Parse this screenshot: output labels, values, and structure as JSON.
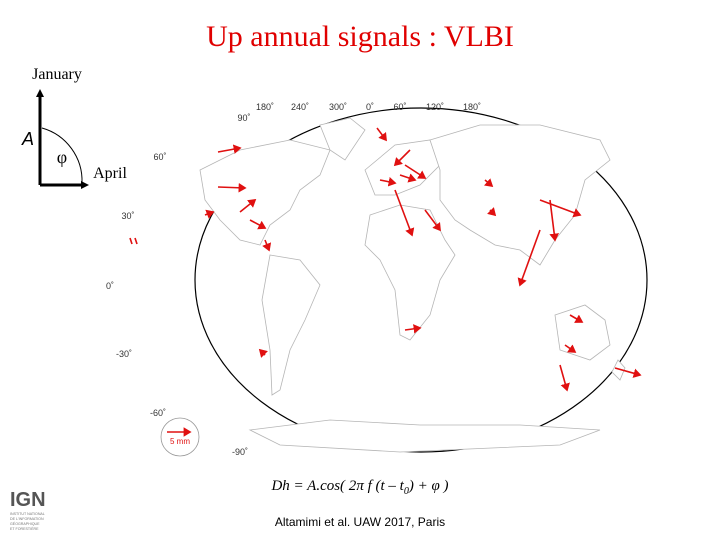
{
  "title": "Up annual signals : VLBI",
  "diagram": {
    "north_label": "January",
    "east_label": "April",
    "amplitude_symbol": "A",
    "phase_symbol": "φ"
  },
  "map": {
    "longitude_labels": [
      "180˚",
      "240˚",
      "300˚",
      "0˚",
      "60˚",
      "120˚",
      "180˚"
    ],
    "latitude_labels": [
      "90˚",
      "60˚",
      "30˚",
      "0˚",
      "-30˚",
      "-60˚",
      "-90˚"
    ],
    "scale_label": "5 mm"
  },
  "formula": [
    "Dh = A.cos( 2",
    "π",
    " f",
    " (t – t",
    "0",
    ") + ",
    "φ",
    " )"
  ],
  "citation": "Altamimi et al. UAW 2017, Paris",
  "logo": {
    "name": "IGN",
    "lines": [
      "INSTITUT NATIONAL",
      "DE L'INFORMATION",
      "GÉOGRAPHIQUE",
      "ET FORESTIÈRE"
    ]
  }
}
